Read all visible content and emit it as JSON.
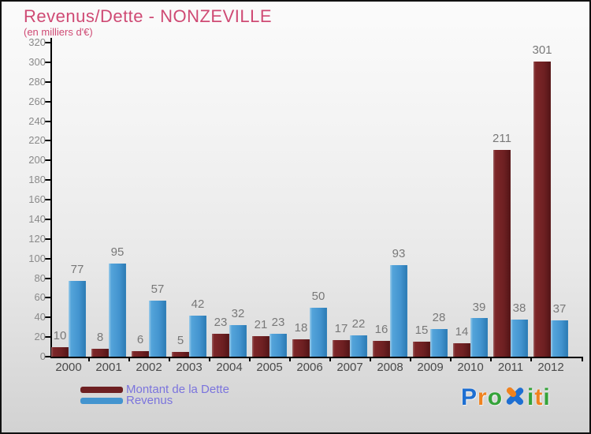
{
  "header": {
    "title": "Revenus/Dette - NONZEVILLE",
    "subtitle": "(en milliers d'€)"
  },
  "colors": {
    "title": "#cf4a74",
    "legend_text": "#7b74dd",
    "value_label": "#787878",
    "tick_label": "#8a8a8a",
    "year_label": "#4a4a4a",
    "axis": "#000000"
  },
  "chart_data": {
    "type": "bar",
    "title": "Revenus/Dette - NONZEVILLE",
    "subtitle": "(en milliers d'€)",
    "categories": [
      "2000",
      "2001",
      "2002",
      "2003",
      "2004",
      "2005",
      "2006",
      "2007",
      "2008",
      "2009",
      "2010",
      "2011",
      "2012"
    ],
    "series": [
      {
        "name": "Montant de la Dette",
        "color": "#6e2022",
        "values": [
          10,
          8,
          6,
          5,
          23,
          21,
          18,
          17,
          16,
          15,
          14,
          211,
          301
        ]
      },
      {
        "name": "Revenus",
        "color": "#4394cf",
        "values": [
          77,
          95,
          57,
          42,
          32,
          23,
          50,
          22,
          93,
          28,
          39,
          38,
          37
        ]
      }
    ],
    "xlabel": "",
    "ylabel": "",
    "ylim": [
      0,
      320
    ],
    "ytick_step": 20,
    "grid": false,
    "value_labels": true,
    "legend_position": "bottom-left"
  },
  "logo": {
    "text": "Proxiti",
    "letters": [
      {
        "ch": "P",
        "color": "#1e6fd2"
      },
      {
        "ch": "r",
        "color": "#f0821e"
      },
      {
        "ch": "o",
        "color": "#35a33a"
      },
      {
        "ch": "x",
        "color": "#1e6fd2",
        "accent": "#f0821e"
      },
      {
        "ch": "i",
        "color": "#35a33a"
      },
      {
        "ch": "t",
        "color": "#f0821e"
      },
      {
        "ch": "i",
        "color": "#35a33a"
      }
    ]
  }
}
